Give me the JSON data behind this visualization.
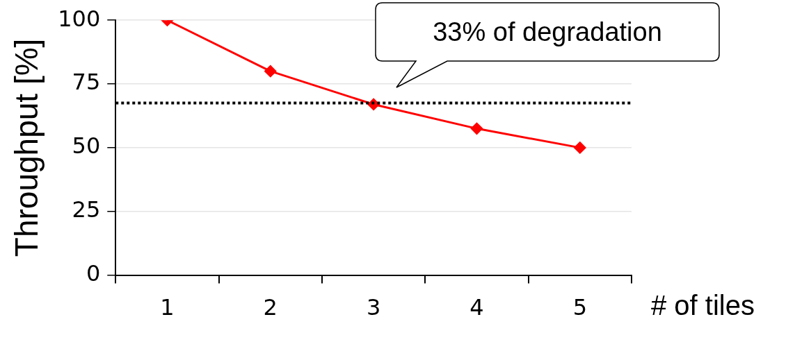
{
  "chart_data": {
    "type": "line",
    "xlabel": "# of tiles",
    "ylabel": "Throughput [%]",
    "categories": [
      "1",
      "2",
      "3",
      "4",
      "5"
    ],
    "series": [
      {
        "color": "#ff0000",
        "values": [
          100,
          80,
          67,
          57.5,
          50
        ]
      }
    ],
    "ylim": [
      0,
      100
    ],
    "yticks": [
      0,
      25,
      50,
      75,
      100
    ],
    "grid": "y",
    "legend": false,
    "marker": "diamond",
    "line_style": "solid",
    "ref_lines": [
      {
        "axis": "y",
        "value": 67.5,
        "color": "#000000",
        "line_style": "dotted"
      }
    ],
    "annotations": [
      "33% of degradation"
    ]
  }
}
